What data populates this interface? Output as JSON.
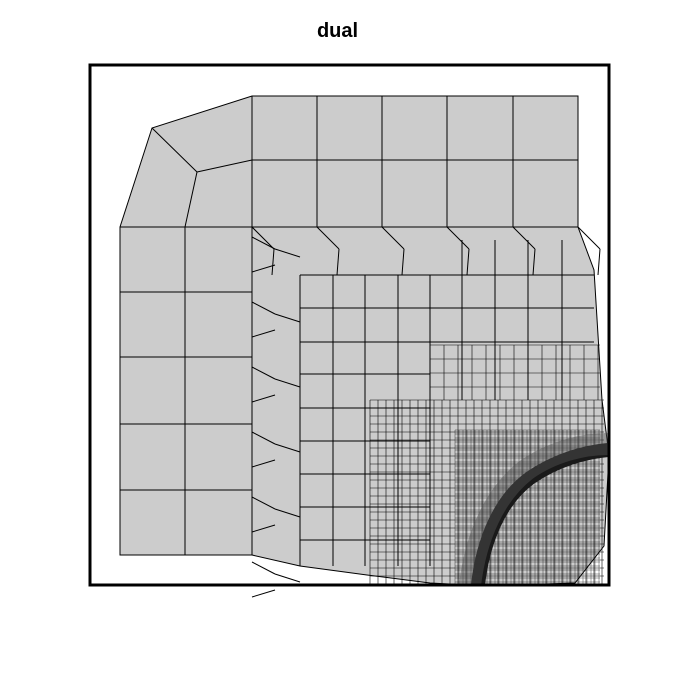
{
  "title": "dual",
  "colors": {
    "cell_fill": "#cccccc",
    "cell_edge": "#000000",
    "frame": "#000000",
    "background": "#ffffff"
  }
}
